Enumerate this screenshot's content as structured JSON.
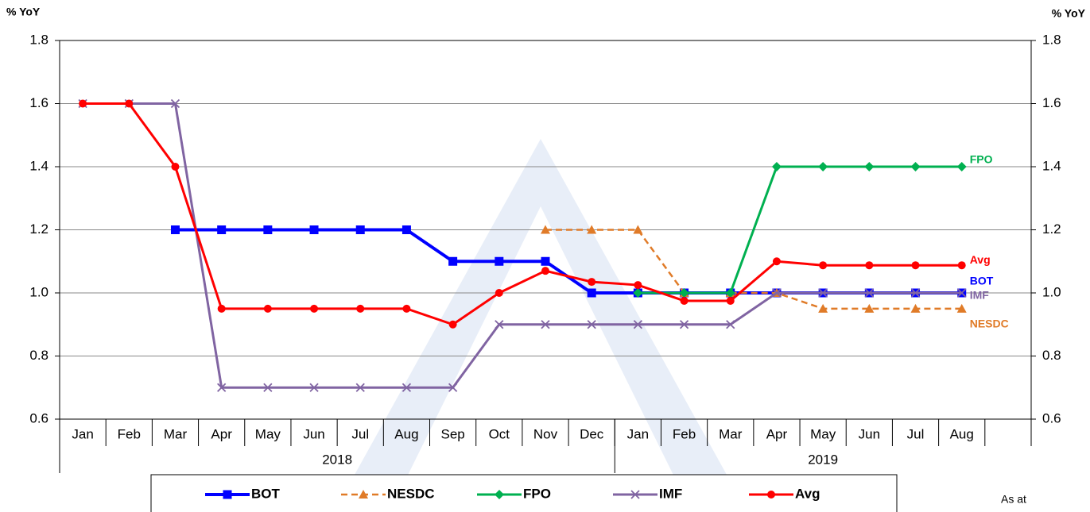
{
  "chart_data": {
    "type": "line",
    "y_label": "% YoY",
    "y2_label": "% YoY",
    "categories": [
      "Jan",
      "Feb",
      "Mar",
      "Apr",
      "May",
      "Jun",
      "Jul",
      "Aug",
      "Sep",
      "Oct",
      "Nov",
      "Dec",
      "Jan",
      "Feb",
      "Mar",
      "Apr",
      "May",
      "Jun",
      "Jul",
      "Aug",
      null
    ],
    "years": [
      {
        "label": "2018",
        "count": 12
      },
      {
        "label": "2019",
        "count": 9
      }
    ],
    "series": [
      {
        "name": "BOT",
        "color": "#0000ff",
        "marker": "square",
        "dash": false,
        "values": [
          null,
          null,
          1.2,
          1.2,
          1.2,
          1.2,
          1.2,
          1.2,
          1.1,
          1.1,
          1.1,
          1.0,
          1.0,
          1.0,
          1.0,
          1.0,
          1.0,
          1.0,
          1.0,
          1.0,
          null
        ]
      },
      {
        "name": "NESDC",
        "color": "#e07b28",
        "marker": "triangle",
        "dash": true,
        "values": [
          null,
          null,
          null,
          null,
          null,
          null,
          null,
          null,
          null,
          null,
          1.2,
          1.2,
          1.2,
          1.0,
          1.0,
          1.0,
          0.95,
          0.95,
          0.95,
          0.95,
          null
        ]
      },
      {
        "name": "FPO",
        "color": "#00b050",
        "marker": "diamond",
        "dash": false,
        "values": [
          null,
          null,
          null,
          null,
          null,
          null,
          null,
          null,
          null,
          null,
          null,
          null,
          1.0,
          1.0,
          1.0,
          1.4,
          1.4,
          1.4,
          1.4,
          1.4,
          null
        ]
      },
      {
        "name": "IMF",
        "color": "#8064a2",
        "marker": "x",
        "dash": false,
        "values": [
          1.6,
          1.6,
          1.6,
          0.7,
          0.7,
          0.7,
          0.7,
          0.7,
          0.7,
          0.9,
          0.9,
          0.9,
          0.9,
          0.9,
          0.9,
          1.0,
          1.0,
          1.0,
          1.0,
          1.0,
          null
        ]
      },
      {
        "name": "Avg",
        "color": "#ff0000",
        "marker": "circle",
        "dash": false,
        "values": [
          1.6,
          1.6,
          1.4,
          0.95,
          0.95,
          0.95,
          0.95,
          0.95,
          0.9,
          1.0,
          1.07,
          1.035,
          1.025,
          0.975,
          0.975,
          1.1,
          1.0875,
          1.0875,
          1.0875,
          1.0875,
          null
        ]
      }
    ],
    "ylim": [
      0.6,
      1.8
    ],
    "yticks": [
      0.6,
      0.8,
      {
        "value": 1,
        "label": "1.0"
      },
      1.2,
      1.4,
      1.6,
      1.8
    ],
    "y2lim": [
      0.6,
      1.8
    ],
    "y2ticks": [
      0.6,
      0.8,
      {
        "value": 1,
        "label": "1.0"
      },
      1.2,
      1.4,
      1.6,
      1.8
    ],
    "grid": true,
    "legend": "bottom",
    "note": "As at"
  }
}
